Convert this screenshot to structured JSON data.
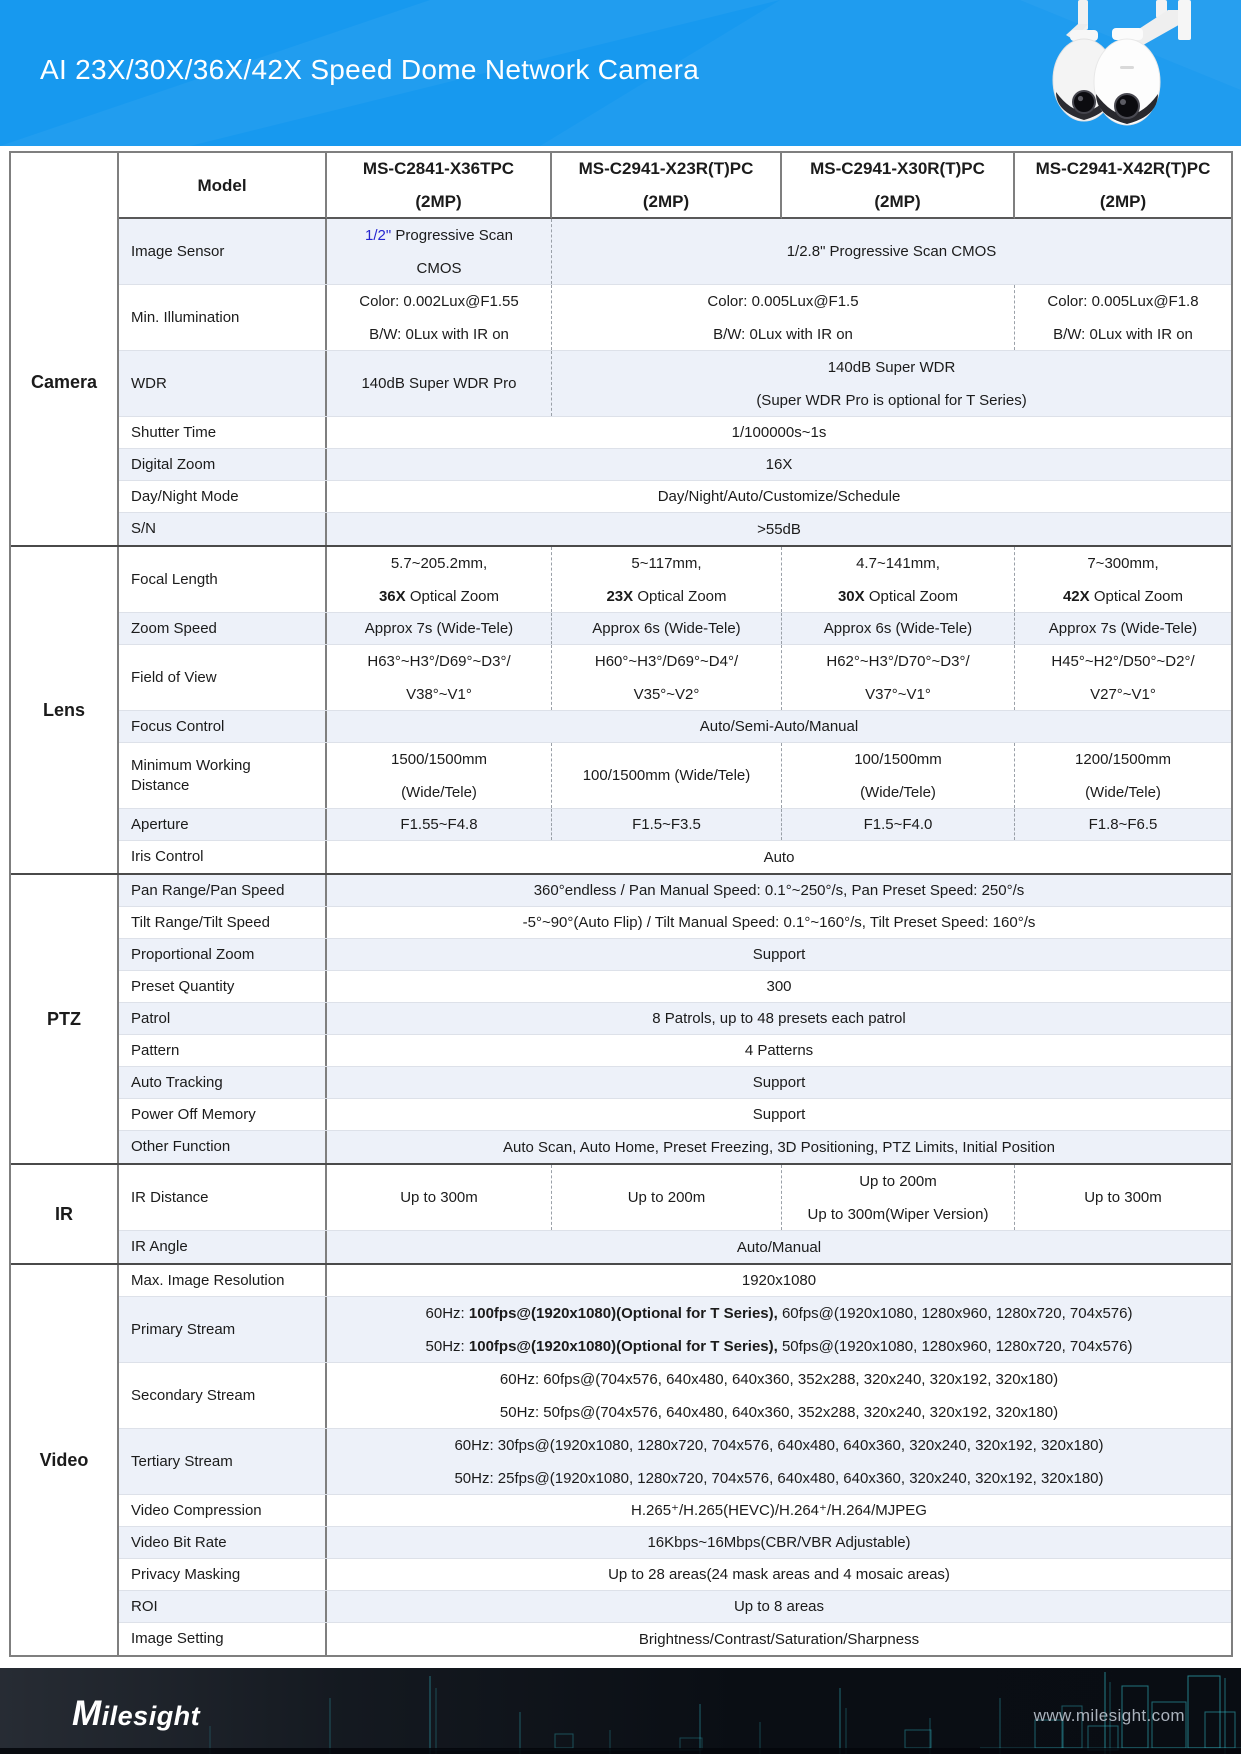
{
  "header": {
    "title": "AI 23X/30X/36X/42X Speed Dome Network Camera"
  },
  "colors": {
    "banner_blue": "#1799ef",
    "accent_blue": "#2525cf",
    "row_shade": "#edf1f9",
    "footer_teal": "#35c8d6"
  },
  "table": {
    "model_header_label": "Model",
    "models": [
      {
        "name": "MS-C2841-X36TPC",
        "mp": "(2MP)"
      },
      {
        "name": "MS-C2941-X23R(T)PC",
        "mp": "(2MP)"
      },
      {
        "name": "MS-C2941-X30R(T)PC",
        "mp": "(2MP)"
      },
      {
        "name": "MS-C2941-X42R(T)PC",
        "mp": "(2MP)"
      }
    ],
    "sections": [
      {
        "name": "Camera",
        "rows": [
          {
            "label": "Image Sensor",
            "tall": true,
            "cells": [
              {
                "span": 1,
                "lines": [
                  [
                    {
                      "t": "1/2\"",
                      "c": "blue"
                    },
                    {
                      "t": " Progressive Scan"
                    }
                  ],
                  [
                    "CMOS"
                  ]
                ]
              },
              {
                "span": 3,
                "lines": [
                  [
                    "1/2.8\" Progressive Scan CMOS"
                  ]
                ]
              }
            ]
          },
          {
            "label": "Min. Illumination",
            "tall": true,
            "cells": [
              {
                "span": 1,
                "lines": [
                  [
                    "Color: 0.002Lux@F1.55"
                  ],
                  [
                    "B/W: 0Lux with IR on"
                  ]
                ]
              },
              {
                "span": 2,
                "lines": [
                  [
                    "Color: 0.005Lux@F1.5"
                  ],
                  [
                    "B/W: 0Lux with IR on"
                  ]
                ]
              },
              {
                "span": 1,
                "lines": [
                  [
                    "Color: 0.005Lux@F1.8"
                  ],
                  [
                    "B/W: 0Lux with IR on"
                  ]
                ]
              }
            ]
          },
          {
            "label": "WDR",
            "tall": true,
            "cells": [
              {
                "span": 1,
                "lines": [
                  [
                    "140dB Super WDR Pro"
                  ]
                ]
              },
              {
                "span": 3,
                "lines": [
                  [
                    "140dB Super WDR"
                  ],
                  [
                    "(Super WDR Pro is optional for T Series)"
                  ]
                ]
              }
            ]
          },
          {
            "label": "Shutter Time",
            "cells": [
              {
                "span": 4,
                "lines": [
                  [
                    "1/100000s~1s"
                  ]
                ]
              }
            ]
          },
          {
            "label": "Digital Zoom",
            "cells": [
              {
                "span": 4,
                "lines": [
                  [
                    "16X"
                  ]
                ]
              }
            ]
          },
          {
            "label": "Day/Night Mode",
            "cells": [
              {
                "span": 4,
                "lines": [
                  [
                    "Day/Night/Auto/Customize/Schedule"
                  ]
                ]
              }
            ]
          },
          {
            "label": "S/N",
            "cells": [
              {
                "span": 4,
                "lines": [
                  [
                    ">55dB"
                  ]
                ]
              }
            ]
          }
        ]
      },
      {
        "name": "Lens",
        "rows": [
          {
            "label": "Focal Length",
            "tall": true,
            "cells": [
              {
                "span": 1,
                "lines": [
                  [
                    "5.7~205.2mm,"
                  ],
                  [
                    {
                      "t": "36X",
                      "b": true
                    },
                    {
                      "t": " Optical Zoom"
                    }
                  ]
                ]
              },
              {
                "span": 1,
                "lines": [
                  [
                    "5~117mm,"
                  ],
                  [
                    {
                      "t": "23X",
                      "b": true
                    },
                    {
                      "t": " Optical Zoom"
                    }
                  ]
                ]
              },
              {
                "span": 1,
                "lines": [
                  [
                    "4.7~141mm,"
                  ],
                  [
                    {
                      "t": "30X",
                      "b": true
                    },
                    {
                      "t": " Optical Zoom"
                    }
                  ]
                ]
              },
              {
                "span": 1,
                "lines": [
                  [
                    "7~300mm,"
                  ],
                  [
                    {
                      "t": "42X",
                      "b": true
                    },
                    {
                      "t": " Optical Zoom"
                    }
                  ]
                ]
              }
            ]
          },
          {
            "label": "Zoom Speed",
            "cells": [
              {
                "span": 1,
                "lines": [
                  [
                    "Approx 7s (Wide-Tele)"
                  ]
                ]
              },
              {
                "span": 1,
                "lines": [
                  [
                    "Approx 6s (Wide-Tele)"
                  ]
                ]
              },
              {
                "span": 1,
                "lines": [
                  [
                    "Approx 6s (Wide-Tele)"
                  ]
                ]
              },
              {
                "span": 1,
                "lines": [
                  [
                    "Approx 7s (Wide-Tele)"
                  ]
                ]
              }
            ]
          },
          {
            "label": "Field of View",
            "tall": true,
            "cells": [
              {
                "span": 1,
                "lines": [
                  [
                    "H63°~H3°/D69°~D3°/"
                  ],
                  [
                    "V38°~V1°"
                  ]
                ]
              },
              {
                "span": 1,
                "lines": [
                  [
                    "H60°~H3°/D69°~D4°/"
                  ],
                  [
                    "V35°~V2°"
                  ]
                ]
              },
              {
                "span": 1,
                "lines": [
                  [
                    "H62°~H3°/D70°~D3°/"
                  ],
                  [
                    "V37°~V1°"
                  ]
                ]
              },
              {
                "span": 1,
                "lines": [
                  [
                    "H45°~H2°/D50°~D2°/"
                  ],
                  [
                    "V27°~V1°"
                  ]
                ]
              }
            ]
          },
          {
            "label": "Focus Control",
            "cells": [
              {
                "span": 4,
                "lines": [
                  [
                    "Auto/Semi-Auto/Manual"
                  ]
                ]
              }
            ]
          },
          {
            "label": "Minimum Working Distance",
            "tall": true,
            "cells": [
              {
                "span": 1,
                "lines": [
                  [
                    "1500/1500mm"
                  ],
                  [
                    "(Wide/Tele)"
                  ]
                ]
              },
              {
                "span": 1,
                "lines": [
                  [
                    "100/1500mm (Wide/Tele)"
                  ]
                ]
              },
              {
                "span": 1,
                "lines": [
                  [
                    "100/1500mm"
                  ],
                  [
                    "(Wide/Tele)"
                  ]
                ]
              },
              {
                "span": 1,
                "lines": [
                  [
                    "1200/1500mm"
                  ],
                  [
                    "(Wide/Tele)"
                  ]
                ]
              }
            ]
          },
          {
            "label": "Aperture",
            "cells": [
              {
                "span": 1,
                "lines": [
                  [
                    "F1.55~F4.8"
                  ]
                ]
              },
              {
                "span": 1,
                "lines": [
                  [
                    "F1.5~F3.5"
                  ]
                ]
              },
              {
                "span": 1,
                "lines": [
                  [
                    "F1.5~F4.0"
                  ]
                ]
              },
              {
                "span": 1,
                "lines": [
                  [
                    "F1.8~F6.5"
                  ]
                ]
              }
            ]
          },
          {
            "label": "Iris Control",
            "cells": [
              {
                "span": 4,
                "lines": [
                  [
                    "Auto"
                  ]
                ]
              }
            ]
          }
        ]
      },
      {
        "name": "PTZ",
        "rows": [
          {
            "label": "Pan Range/Pan Speed",
            "cells": [
              {
                "span": 4,
                "lines": [
                  [
                    "360°endless / Pan Manual Speed: 0.1°~250°/s, Pan Preset Speed: 250°/s"
                  ]
                ]
              }
            ]
          },
          {
            "label": "Tilt Range/Tilt Speed",
            "cells": [
              {
                "span": 4,
                "lines": [
                  [
                    "-5°~90°(Auto Flip) / Tilt Manual Speed: 0.1°~160°/s, Tilt Preset Speed: 160°/s"
                  ]
                ]
              }
            ]
          },
          {
            "label": "Proportional Zoom",
            "cells": [
              {
                "span": 4,
                "lines": [
                  [
                    "Support"
                  ]
                ]
              }
            ]
          },
          {
            "label": "Preset Quantity",
            "cells": [
              {
                "span": 4,
                "lines": [
                  [
                    "300"
                  ]
                ]
              }
            ]
          },
          {
            "label": "Patrol",
            "cells": [
              {
                "span": 4,
                "lines": [
                  [
                    "8 Patrols, up to 48 presets each patrol"
                  ]
                ]
              }
            ]
          },
          {
            "label": "Pattern",
            "cells": [
              {
                "span": 4,
                "lines": [
                  [
                    "4 Patterns"
                  ]
                ]
              }
            ]
          },
          {
            "label": "Auto Tracking",
            "cells": [
              {
                "span": 4,
                "lines": [
                  [
                    "Support"
                  ]
                ]
              }
            ]
          },
          {
            "label": "Power Off Memory",
            "cells": [
              {
                "span": 4,
                "lines": [
                  [
                    "Support"
                  ]
                ]
              }
            ]
          },
          {
            "label": "Other Function",
            "cells": [
              {
                "span": 4,
                "lines": [
                  [
                    "Auto Scan, Auto Home, Preset Freezing, 3D Positioning, PTZ Limits, Initial Position"
                  ]
                ]
              }
            ]
          }
        ]
      },
      {
        "name": "IR",
        "rows": [
          {
            "label": "IR Distance",
            "tall": true,
            "cells": [
              {
                "span": 1,
                "lines": [
                  [
                    "Up to 300m"
                  ]
                ]
              },
              {
                "span": 1,
                "lines": [
                  [
                    "Up to 200m"
                  ]
                ]
              },
              {
                "span": 1,
                "lines": [
                  [
                    "Up to 200m"
                  ],
                  [
                    "Up to 300m(Wiper Version)"
                  ]
                ]
              },
              {
                "span": 1,
                "lines": [
                  [
                    "Up to 300m"
                  ]
                ]
              }
            ]
          },
          {
            "label": "IR Angle",
            "cells": [
              {
                "span": 4,
                "lines": [
                  [
                    "Auto/Manual"
                  ]
                ]
              }
            ]
          }
        ]
      },
      {
        "name": "Video",
        "rows": [
          {
            "label": "Max. Image Resolution",
            "cells": [
              {
                "span": 4,
                "lines": [
                  [
                    "1920x1080"
                  ]
                ]
              }
            ]
          },
          {
            "label": "Primary Stream",
            "tall": true,
            "cells": [
              {
                "span": 4,
                "lines": [
                  [
                    {
                      "t": "60Hz: "
                    },
                    {
                      "t": "100fps@(1920x1080)(Optional for T Series),",
                      "b": true
                    },
                    {
                      "t": " 60fps@(1920x1080, 1280x960, 1280x720, 704x576)"
                    }
                  ],
                  [
                    {
                      "t": "50Hz: "
                    },
                    {
                      "t": "100fps@(1920x1080)(Optional for T Series),",
                      "b": true
                    },
                    {
                      "t": " 50fps@(1920x1080, 1280x960, 1280x720, 704x576)"
                    }
                  ]
                ]
              }
            ]
          },
          {
            "label": "Secondary Stream",
            "tall": true,
            "cells": [
              {
                "span": 4,
                "lines": [
                  [
                    "60Hz: 60fps@(704x576, 640x480, 640x360, 352x288, 320x240, 320x192, 320x180)"
                  ],
                  [
                    "50Hz: 50fps@(704x576, 640x480, 640x360, 352x288, 320x240, 320x192, 320x180)"
                  ]
                ]
              }
            ]
          },
          {
            "label": "Tertiary Stream",
            "tall": true,
            "cells": [
              {
                "span": 4,
                "lines": [
                  [
                    "60Hz: 30fps@(1920x1080, 1280x720, 704x576, 640x480, 640x360, 320x240, 320x192, 320x180)"
                  ],
                  [
                    "50Hz: 25fps@(1920x1080, 1280x720, 704x576, 640x480, 640x360, 320x240, 320x192, 320x180)"
                  ]
                ]
              }
            ]
          },
          {
            "label": "Video Compression",
            "cells": [
              {
                "span": 4,
                "lines": [
                  [
                    "H.265⁺/H.265(HEVC)/H.264⁺/H.264/MJPEG"
                  ]
                ]
              }
            ]
          },
          {
            "label": "Video Bit Rate",
            "cells": [
              {
                "span": 4,
                "lines": [
                  [
                    "16Kbps~16Mbps(CBR/VBR Adjustable)"
                  ]
                ]
              }
            ]
          },
          {
            "label": "Privacy Masking",
            "cells": [
              {
                "span": 4,
                "lines": [
                  [
                    "Up to 28 areas(24 mask areas and 4 mosaic areas)"
                  ]
                ]
              }
            ]
          },
          {
            "label": "ROI",
            "cells": [
              {
                "span": 4,
                "lines": [
                  [
                    "Up to 8 areas"
                  ]
                ]
              }
            ]
          },
          {
            "label": "Image Setting",
            "cells": [
              {
                "span": 4,
                "lines": [
                  [
                    "Brightness/Contrast/Saturation/Sharpness"
                  ]
                ]
              }
            ]
          }
        ]
      }
    ]
  },
  "footer": {
    "logo_text": "Milesight",
    "website": "www.milesight.com"
  }
}
